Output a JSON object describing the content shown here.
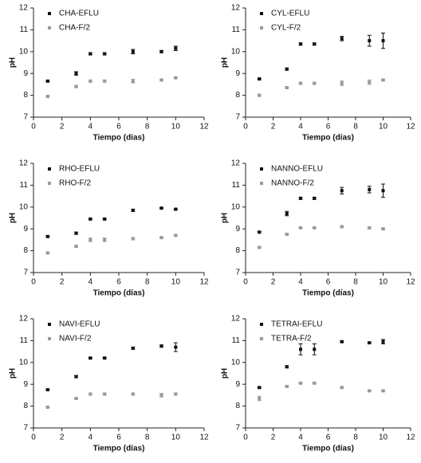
{
  "chart_data": [
    {
      "type": "scatter",
      "xlabel": "Tiempo (días)",
      "ylabel": "pH",
      "x": [
        1,
        3,
        4,
        5,
        7,
        9,
        10
      ],
      "series": [
        {
          "name": "CHA-EFLU",
          "color": "#111111",
          "values": [
            8.65,
            9.0,
            9.9,
            9.9,
            10.0,
            10.0,
            10.15
          ],
          "errors": [
            0.03,
            0.08,
            0.05,
            0.05,
            0.1,
            0.05,
            0.1
          ]
        },
        {
          "name": "CHA-F/2",
          "color": "#999999",
          "values": [
            7.95,
            8.4,
            8.65,
            8.65,
            8.65,
            8.7,
            8.8
          ],
          "errors": [
            0.03,
            0.05,
            0.05,
            0.05,
            0.08,
            0.03,
            0.03
          ]
        }
      ],
      "xlim": [
        0,
        12
      ],
      "ylim": [
        7,
        12
      ],
      "xticks": [
        0,
        2,
        4,
        6,
        8,
        10,
        12
      ],
      "yticks": [
        7,
        8,
        9,
        10,
        11,
        12
      ]
    },
    {
      "type": "scatter",
      "xlabel": "Tiempo (días)",
      "ylabel": "pH",
      "x": [
        1,
        3,
        4,
        5,
        7,
        9,
        10
      ],
      "series": [
        {
          "name": "CYL-EFLU",
          "color": "#111111",
          "values": [
            8.75,
            9.2,
            10.35,
            10.35,
            10.6,
            10.5,
            10.5
          ],
          "errors": [
            0.03,
            0.05,
            0.05,
            0.05,
            0.1,
            0.25,
            0.35
          ]
        },
        {
          "name": "CYL-F/2",
          "color": "#999999",
          "values": [
            8.0,
            8.35,
            8.55,
            8.55,
            8.55,
            8.6,
            8.7
          ],
          "errors": [
            0.05,
            0.03,
            0.05,
            0.05,
            0.1,
            0.1,
            0.03
          ]
        }
      ],
      "xlim": [
        0,
        12
      ],
      "ylim": [
        7,
        12
      ],
      "xticks": [
        0,
        2,
        4,
        6,
        8,
        10,
        12
      ],
      "yticks": [
        7,
        8,
        9,
        10,
        11,
        12
      ]
    },
    {
      "type": "scatter",
      "xlabel": "Tiempo (días)",
      "ylabel": "pH",
      "x": [
        1,
        3,
        4,
        5,
        7,
        9,
        10
      ],
      "series": [
        {
          "name": "RHO-EFLU",
          "color": "#111111",
          "values": [
            8.65,
            8.8,
            9.45,
            9.45,
            9.85,
            9.95,
            9.9
          ],
          "errors": [
            0.03,
            0.05,
            0.03,
            0.03,
            0.05,
            0.03,
            0.03
          ]
        },
        {
          "name": "RHO-F/2",
          "color": "#999999",
          "values": [
            7.9,
            8.2,
            8.5,
            8.5,
            8.55,
            8.6,
            8.7
          ],
          "errors": [
            0.03,
            0.05,
            0.08,
            0.08,
            0.05,
            0.03,
            0.03
          ]
        }
      ],
      "xlim": [
        0,
        12
      ],
      "ylim": [
        7,
        12
      ],
      "xticks": [
        0,
        2,
        4,
        6,
        8,
        10,
        12
      ],
      "yticks": [
        7,
        8,
        9,
        10,
        11,
        12
      ]
    },
    {
      "type": "scatter",
      "xlabel": "Tiempo (días)",
      "ylabel": "pH",
      "x": [
        1,
        3,
        4,
        5,
        7,
        9,
        10
      ],
      "series": [
        {
          "name": "NANNO-EFLU",
          "color": "#111111",
          "values": [
            8.85,
            9.7,
            10.4,
            10.4,
            10.75,
            10.8,
            10.75
          ],
          "errors": [
            0.03,
            0.1,
            0.05,
            0.05,
            0.15,
            0.15,
            0.3
          ]
        },
        {
          "name": "NANNO-F/2",
          "color": "#999999",
          "values": [
            8.15,
            8.75,
            9.05,
            9.05,
            9.1,
            9.05,
            9.0
          ],
          "errors": [
            0.03,
            0.03,
            0.03,
            0.03,
            0.05,
            0.05,
            0.03
          ]
        }
      ],
      "xlim": [
        0,
        12
      ],
      "ylim": [
        7,
        12
      ],
      "xticks": [
        0,
        2,
        4,
        6,
        8,
        10,
        12
      ],
      "yticks": [
        7,
        8,
        9,
        10,
        11,
        12
      ]
    },
    {
      "type": "scatter",
      "xlabel": "Tiempo (días)",
      "ylabel": "pH",
      "x": [
        1,
        3,
        4,
        5,
        7,
        9,
        10
      ],
      "series": [
        {
          "name": "NAVI-EFLU",
          "color": "#111111",
          "values": [
            8.75,
            9.35,
            10.2,
            10.2,
            10.65,
            10.75,
            10.7
          ],
          "errors": [
            0.03,
            0.05,
            0.03,
            0.03,
            0.05,
            0.05,
            0.2
          ]
        },
        {
          "name": "NAVI-F/2",
          "color": "#999999",
          "values": [
            7.95,
            8.35,
            8.55,
            8.55,
            8.55,
            8.5,
            8.55
          ],
          "errors": [
            0.03,
            0.03,
            0.05,
            0.05,
            0.05,
            0.08,
            0.05
          ]
        }
      ],
      "xlim": [
        0,
        12
      ],
      "ylim": [
        7,
        12
      ],
      "xticks": [
        0,
        2,
        4,
        6,
        8,
        10,
        12
      ],
      "yticks": [
        7,
        8,
        9,
        10,
        11,
        12
      ]
    },
    {
      "type": "scatter",
      "xlabel": "Tiempo (días)",
      "ylabel": "pH",
      "x": [
        1,
        3,
        4,
        5,
        7,
        9,
        10
      ],
      "series": [
        {
          "name": "TETRAI-EFLU",
          "color": "#111111",
          "values": [
            8.85,
            9.8,
            10.6,
            10.6,
            10.95,
            10.9,
            10.95
          ],
          "errors": [
            0.03,
            0.05,
            0.25,
            0.25,
            0.03,
            0.03,
            0.1
          ]
        },
        {
          "name": "TETRA-F/2",
          "color": "#999999",
          "values": [
            8.35,
            8.9,
            9.05,
            9.05,
            8.85,
            8.7,
            8.7
          ],
          "errors": [
            0.1,
            0.03,
            0.03,
            0.03,
            0.03,
            0.03,
            0.03
          ]
        }
      ],
      "xlim": [
        0,
        12
      ],
      "ylim": [
        7,
        12
      ],
      "xticks": [
        0,
        2,
        4,
        6,
        8,
        10,
        12
      ],
      "yticks": [
        7,
        8,
        9,
        10,
        11,
        12
      ]
    }
  ]
}
